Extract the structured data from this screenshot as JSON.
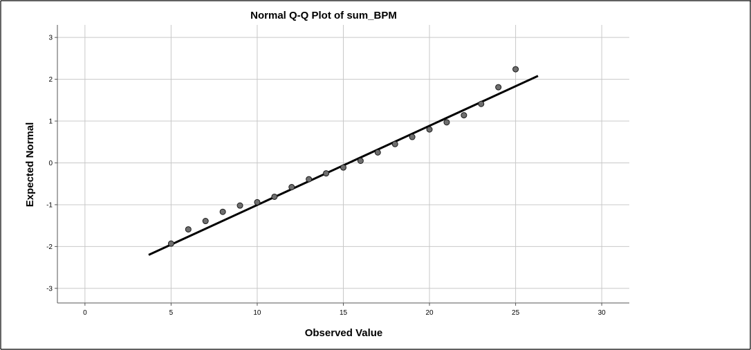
{
  "chart_data": {
    "type": "scatter",
    "title": "Normal Q-Q Plot of sum_BPM",
    "xlabel": "Observed Value",
    "ylabel": "Expected Normal",
    "xlim": [
      -1.6,
      31.6
    ],
    "ylim": [
      -3.35,
      3.3
    ],
    "x_ticks": [
      0,
      5,
      10,
      15,
      20,
      25,
      30
    ],
    "y_ticks": [
      3,
      2,
      1,
      0,
      -1,
      -2,
      -3
    ],
    "grid": true,
    "points": [
      {
        "x": 5,
        "y": -1.93
      },
      {
        "x": 6,
        "y": -1.59
      },
      {
        "x": 7,
        "y": -1.39
      },
      {
        "x": 8,
        "y": -1.17
      },
      {
        "x": 9,
        "y": -1.02
      },
      {
        "x": 10,
        "y": -0.94
      },
      {
        "x": 11,
        "y": -0.81
      },
      {
        "x": 12,
        "y": -0.58
      },
      {
        "x": 13,
        "y": -0.39
      },
      {
        "x": 14,
        "y": -0.25
      },
      {
        "x": 15,
        "y": -0.11
      },
      {
        "x": 16,
        "y": 0.05
      },
      {
        "x": 17,
        "y": 0.25
      },
      {
        "x": 18,
        "y": 0.45
      },
      {
        "x": 19,
        "y": 0.62
      },
      {
        "x": 20,
        "y": 0.8
      },
      {
        "x": 21,
        "y": 0.97
      },
      {
        "x": 22,
        "y": 1.14
      },
      {
        "x": 23,
        "y": 1.41
      },
      {
        "x": 24,
        "y": 1.81
      },
      {
        "x": 25,
        "y": 2.24
      }
    ],
    "reference_line": {
      "x_start": 3.7,
      "y_start": -2.2,
      "x_end": 26.3,
      "y_end": 2.08
    },
    "colors": {
      "point_fill": "#6e6e6e",
      "point_stroke": "#1a1a1a",
      "line": "#000000",
      "grid": "#c8c8c8",
      "axis": "#555555"
    }
  }
}
